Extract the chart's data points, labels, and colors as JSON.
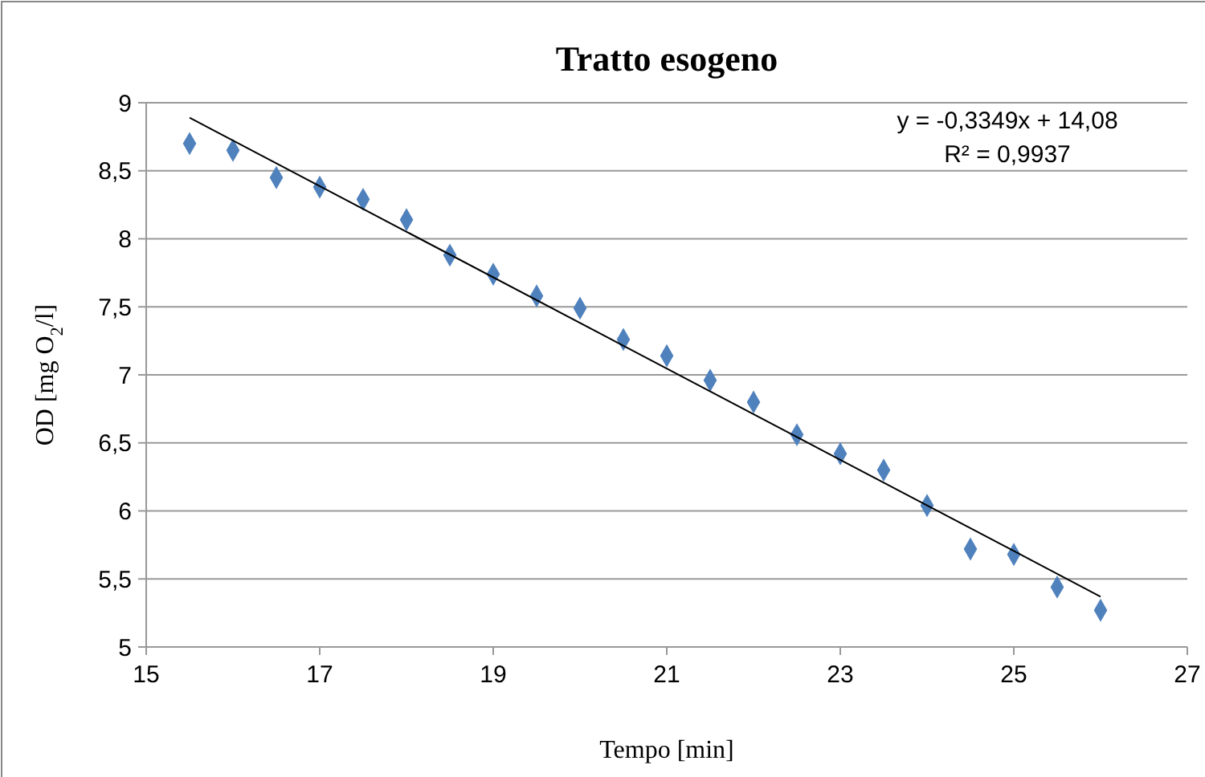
{
  "chart_data": {
    "type": "scatter",
    "title": "Tratto esogeno",
    "xlabel": "Tempo [min]",
    "ylabel": "OD [mg O$_{2}$/l]",
    "x": [
      15.5,
      16,
      16.5,
      17,
      17.5,
      18,
      18.5,
      19,
      19.5,
      20,
      20.5,
      21,
      21.5,
      22,
      22.5,
      23,
      23.5,
      24,
      24.5,
      25,
      25.5,
      26
    ],
    "series": [
      {
        "color": "#4f81bd",
        "marker": "diamond",
        "values": [
          8.7,
          8.65,
          8.45,
          8.38,
          8.29,
          8.14,
          7.88,
          7.74,
          7.58,
          7.49,
          7.26,
          7.14,
          6.96,
          6.8,
          6.56,
          6.42,
          6.3,
          6.04,
          5.72,
          5.68,
          5.44,
          5.27
        ]
      },
      {
        "type": "line",
        "color": "#000000",
        "x": [
          15.5,
          26
        ],
        "values": [
          8.89,
          5.37
        ],
        "marker": "none"
      }
    ],
    "xlim": [
      15,
      27
    ],
    "xticks": [
      15,
      17,
      19,
      21,
      23,
      25,
      27
    ],
    "ylim": [
      5,
      9
    ],
    "yticks": [
      5,
      {
        "value": 5.5,
        "label": "5,5"
      },
      6,
      {
        "value": 6.5,
        "label": "6,5"
      },
      7,
      {
        "value": 7.5,
        "label": "7,5"
      },
      8,
      {
        "value": 8.5,
        "label": "8,5"
      },
      9
    ],
    "grid": "y",
    "annotations": [
      "y = -0,3349x + 14,08",
      "R² = 0,9937"
    ]
  }
}
